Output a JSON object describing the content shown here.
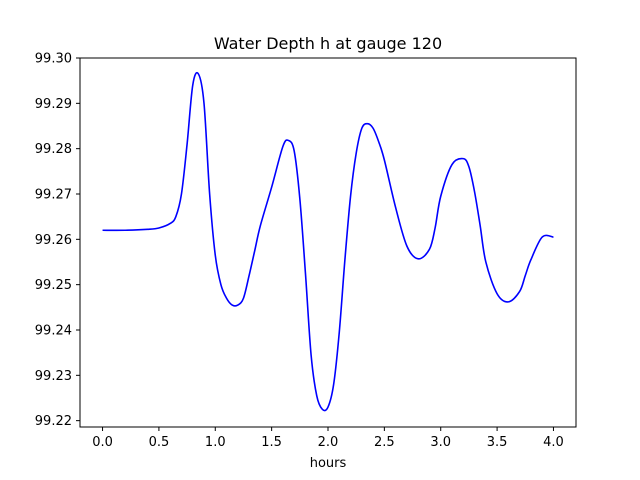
{
  "chart_data": {
    "type": "line",
    "title": "Water Depth h at gauge 120",
    "xlabel": "hours",
    "ylabel": "",
    "xlim": [
      -0.2,
      4.2
    ],
    "ylim": [
      99.2186,
      99.3
    ],
    "xticks": [
      0.0,
      0.5,
      1.0,
      1.5,
      2.0,
      2.5,
      3.0,
      3.5,
      4.0
    ],
    "xtick_labels": [
      "0.0",
      "0.5",
      "1.0",
      "1.5",
      "2.0",
      "2.5",
      "3.0",
      "3.5",
      "4.0"
    ],
    "yticks": [
      99.22,
      99.23,
      99.24,
      99.25,
      99.26,
      99.27,
      99.28,
      99.29,
      99.3
    ],
    "ytick_labels": [
      "99.22",
      "99.23",
      "99.24",
      "99.25",
      "99.26",
      "99.27",
      "99.28",
      "99.29",
      "99.30"
    ],
    "grid": false,
    "legend": "none",
    "series": [
      {
        "color": "#0000ff",
        "x": [
          0.0,
          0.2,
          0.4,
          0.5,
          0.6,
          0.65,
          0.7,
          0.75,
          0.8,
          0.85,
          0.9,
          0.95,
          1.0,
          1.05,
          1.1,
          1.15,
          1.2,
          1.25,
          1.3,
          1.35,
          1.4,
          1.5,
          1.6,
          1.65,
          1.7,
          1.75,
          1.8,
          1.85,
          1.9,
          1.95,
          2.0,
          2.05,
          2.1,
          2.15,
          2.2,
          2.25,
          2.3,
          2.35,
          2.4,
          2.45,
          2.5,
          2.6,
          2.7,
          2.8,
          2.9,
          2.95,
          3.0,
          3.1,
          3.2,
          3.25,
          3.3,
          3.35,
          3.4,
          3.5,
          3.6,
          3.7,
          3.75,
          3.8,
          3.9,
          4.0
        ],
        "y": [
          99.262,
          99.262,
          99.2622,
          99.2625,
          99.2635,
          99.265,
          99.27,
          99.281,
          99.294,
          99.2965,
          99.29,
          99.27,
          99.2565,
          99.25,
          99.247,
          99.2455,
          99.2455,
          99.247,
          99.252,
          99.2575,
          99.263,
          99.2715,
          99.2805,
          99.2818,
          99.2795,
          99.269,
          99.2525,
          99.2345,
          99.2255,
          99.2225,
          99.223,
          99.228,
          99.2395,
          99.2555,
          99.2695,
          99.279,
          99.2845,
          99.2855,
          99.2845,
          99.2815,
          99.2775,
          99.267,
          99.2585,
          99.2557,
          99.2578,
          99.2625,
          99.2695,
          99.2765,
          99.2778,
          99.276,
          99.2705,
          99.263,
          99.255,
          99.248,
          99.2462,
          99.2485,
          99.252,
          99.2555,
          99.2605,
          99.2605
        ]
      }
    ]
  }
}
